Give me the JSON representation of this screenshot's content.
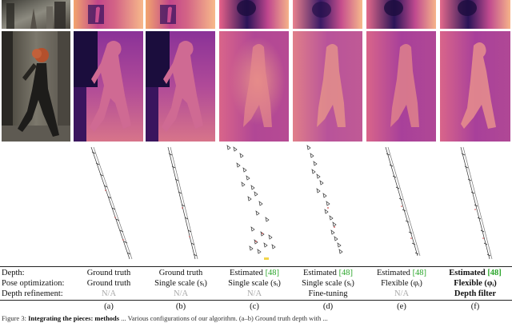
{
  "colors": {
    "depth_dark": "#1a0c3e",
    "depth_mid": "#b8479a",
    "depth_light": "#f7c98a",
    "citation_green": "#2aa52a",
    "na_gray": "#a8a8a8"
  },
  "table": {
    "rows": [
      {
        "label": "Depth:",
        "cells": [
          {
            "text": "Ground truth",
            "cite": "",
            "style": "normal"
          },
          {
            "text": "Ground truth",
            "cite": "",
            "style": "normal"
          },
          {
            "text": "Estimated ",
            "cite": "[48]",
            "style": "normal"
          },
          {
            "text": "Estimated ",
            "cite": "[48]",
            "style": "normal"
          },
          {
            "text": "Estimated ",
            "cite": "[48]",
            "style": "normal"
          },
          {
            "text": "Estimated ",
            "cite": "[48]",
            "style": "bold"
          }
        ]
      },
      {
        "label": "Pose optimization:",
        "cells": [
          {
            "text": "Ground truth",
            "cite": "",
            "style": "normal"
          },
          {
            "text": "Single scale (sᵢ)",
            "cite": "",
            "style": "normal"
          },
          {
            "text": "Single scale (sᵢ)",
            "cite": "",
            "style": "normal"
          },
          {
            "text": "Single scale (sᵢ)",
            "cite": "",
            "style": "normal"
          },
          {
            "text": "Flexible (φᵢ)",
            "cite": "",
            "style": "normal"
          },
          {
            "text": "Flexible (φᵢ)",
            "cite": "",
            "style": "bold"
          }
        ]
      },
      {
        "label": "Depth refinement:",
        "cells": [
          {
            "text": "N/A",
            "cite": "",
            "style": "na"
          },
          {
            "text": "N/A",
            "cite": "",
            "style": "na"
          },
          {
            "text": "N/A",
            "cite": "",
            "style": "na"
          },
          {
            "text": "Fine-tuning",
            "cite": "",
            "style": "normal"
          },
          {
            "text": "N/A",
            "cite": "",
            "style": "na"
          },
          {
            "text": "Depth filter",
            "cite": "",
            "style": "bold"
          }
        ]
      }
    ],
    "letters": [
      "(a)",
      "(b)",
      "(c)",
      "(d)",
      "(e)",
      "(f)"
    ]
  },
  "caption": {
    "prefix": "Figure 3:",
    "bold": "Integrating the pieces: methods",
    "rest": " ... Various configurations of our algorithm. (a–b) Ground truth depth with ..."
  }
}
